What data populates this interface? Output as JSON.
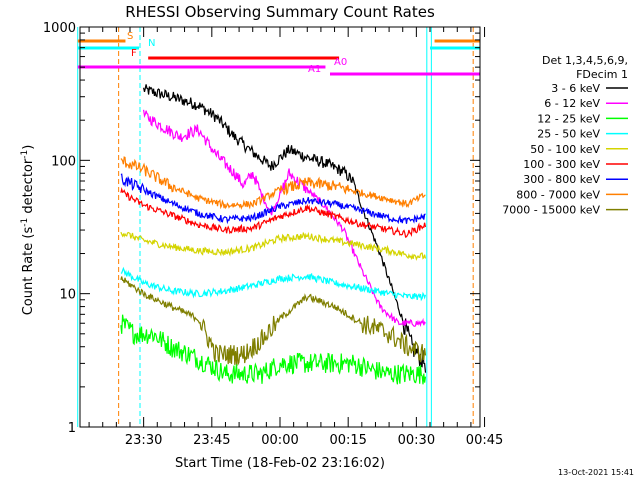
{
  "chart_data": {
    "type": "line",
    "title": "RHESSI Observing Summary Count Rates",
    "xlabel": "Start Time (18-Feb-02 23:16:02)",
    "ylabel_main": "Count Rate (s",
    "ylabel_sup1": "-1",
    "ylabel_mid": " detector",
    "ylabel_sup2": "-1",
    "ylabel_end": ")",
    "y_scale": "log",
    "ylim": [
      1,
      1000
    ],
    "x_range_min": [
      0,
      88
    ],
    "x_tick_values": [
      14,
      29,
      44,
      59,
      74,
      89
    ],
    "x_tick_labels": [
      "23:30",
      "23:45",
      "00:00",
      "00:15",
      "00:30",
      "00:45"
    ],
    "y_tick_values": [
      1,
      10,
      100,
      1000
    ],
    "y_tick_labels": [
      "1",
      "10",
      "100",
      "1000"
    ],
    "legend_header": [
      "Det 1,3,4,5,6,9,",
      "FDecim 1"
    ],
    "timestamp": "13-Oct-2021 15:41",
    "data_window_min": [
      13,
      76
    ],
    "series": [
      {
        "name": "3 - 6 keV",
        "color": "#000000",
        "knots": [
          [
            14,
            340
          ],
          [
            20,
            300
          ],
          [
            26,
            260
          ],
          [
            30,
            210
          ],
          [
            34,
            150
          ],
          [
            38,
            115
          ],
          [
            42,
            90
          ],
          [
            46,
            120
          ],
          [
            50,
            105
          ],
          [
            54,
            95
          ],
          [
            58,
            82
          ],
          [
            60,
            70
          ],
          [
            62,
            45
          ],
          [
            66,
            20
          ],
          [
            70,
            8
          ],
          [
            73,
            4
          ],
          [
            76,
            3
          ]
        ]
      },
      {
        "name": "6 - 12 keV",
        "color": "#ff00ff",
        "knots": [
          [
            14,
            220
          ],
          [
            18,
            180
          ],
          [
            22,
            150
          ],
          [
            26,
            170
          ],
          [
            30,
            110
          ],
          [
            34,
            80
          ],
          [
            36,
            65
          ],
          [
            38,
            80
          ],
          [
            40,
            55
          ],
          [
            42,
            40
          ],
          [
            44,
            55
          ],
          [
            46,
            80
          ],
          [
            50,
            60
          ],
          [
            54,
            45
          ],
          [
            58,
            30
          ],
          [
            62,
            15
          ],
          [
            66,
            8
          ],
          [
            70,
            6
          ],
          [
            73,
            6
          ],
          [
            76,
            6
          ]
        ]
      },
      {
        "name": "12 - 25 keV",
        "color": "#00ff00",
        "knots": [
          [
            9,
            6
          ],
          [
            12,
            5
          ],
          [
            16,
            5
          ],
          [
            20,
            4
          ],
          [
            24,
            3.5
          ],
          [
            28,
            3
          ],
          [
            32,
            2.5
          ],
          [
            36,
            2.5
          ],
          [
            40,
            2.5
          ],
          [
            44,
            3
          ],
          [
            48,
            3
          ],
          [
            52,
            3
          ],
          [
            56,
            3
          ],
          [
            60,
            3
          ],
          [
            64,
            2.7
          ],
          [
            68,
            2.5
          ],
          [
            72,
            2.5
          ],
          [
            76,
            2.5
          ]
        ]
      },
      {
        "name": "25 - 50 keV",
        "color": "#00ffff",
        "knots": [
          [
            9,
            15
          ],
          [
            14,
            12
          ],
          [
            20,
            10.5
          ],
          [
            26,
            10
          ],
          [
            32,
            10.5
          ],
          [
            38,
            11.5
          ],
          [
            44,
            13
          ],
          [
            50,
            13.5
          ],
          [
            56,
            12
          ],
          [
            62,
            11
          ],
          [
            68,
            10
          ],
          [
            72,
            9.5
          ],
          [
            76,
            9.5
          ]
        ]
      },
      {
        "name": "50 - 100 keV",
        "color": "#d4d400",
        "knots": [
          [
            9,
            29
          ],
          [
            14,
            25
          ],
          [
            20,
            22.5
          ],
          [
            26,
            21
          ],
          [
            32,
            20.5
          ],
          [
            38,
            22
          ],
          [
            44,
            26
          ],
          [
            50,
            27
          ],
          [
            56,
            25
          ],
          [
            62,
            23
          ],
          [
            68,
            21
          ],
          [
            72,
            19.5
          ],
          [
            76,
            19
          ]
        ]
      },
      {
        "name": "100 - 300 keV",
        "color": "#ff0000",
        "knots": [
          [
            9,
            58
          ],
          [
            14,
            46
          ],
          [
            20,
            39
          ],
          [
            26,
            33
          ],
          [
            32,
            30
          ],
          [
            38,
            31
          ],
          [
            44,
            38
          ],
          [
            50,
            44
          ],
          [
            56,
            38
          ],
          [
            62,
            33
          ],
          [
            68,
            30
          ],
          [
            72,
            28
          ],
          [
            76,
            33
          ]
        ]
      },
      {
        "name": "300 - 800 keV",
        "color": "#0000ff",
        "knots": [
          [
            9,
            73
          ],
          [
            14,
            60
          ],
          [
            20,
            48
          ],
          [
            26,
            40
          ],
          [
            32,
            36
          ],
          [
            38,
            37
          ],
          [
            44,
            45
          ],
          [
            50,
            50
          ],
          [
            56,
            47
          ],
          [
            62,
            42
          ],
          [
            68,
            37
          ],
          [
            72,
            35
          ],
          [
            76,
            38
          ]
        ]
      },
      {
        "name": "800 - 7000 keV",
        "color": "#ff7f00",
        "knots": [
          [
            9,
            100
          ],
          [
            14,
            85
          ],
          [
            20,
            64
          ],
          [
            26,
            52
          ],
          [
            32,
            46
          ],
          [
            38,
            47
          ],
          [
            44,
            60
          ],
          [
            50,
            68
          ],
          [
            56,
            64
          ],
          [
            62,
            57
          ],
          [
            68,
            51
          ],
          [
            72,
            47
          ],
          [
            76,
            55
          ]
        ]
      },
      {
        "name": "7000 - 15000 keV",
        "color": "#7f7f00",
        "knots": [
          [
            9,
            13
          ],
          [
            14,
            10
          ],
          [
            20,
            8
          ],
          [
            26,
            6.5
          ],
          [
            30,
            3.5
          ],
          [
            36,
            3.5
          ],
          [
            40,
            4.5
          ],
          [
            44,
            6.5
          ],
          [
            50,
            9.5
          ],
          [
            56,
            8
          ],
          [
            62,
            6
          ],
          [
            68,
            5
          ],
          [
            72,
            4
          ],
          [
            76,
            3.5
          ]
        ]
      }
    ],
    "flags": [
      {
        "name": "S",
        "color": "#ff7f00",
        "segments": [
          [
            -0.5,
            10
          ]
        ]
      },
      {
        "name": "N",
        "color": "#00ffff",
        "segments": [
          [
            -0.5,
            13
          ]
        ]
      },
      {
        "name": "F",
        "color": "#ff0000",
        "segments": [
          [
            15,
            57
          ]
        ]
      },
      {
        "name": "A0",
        "color": "#ff00ff",
        "segments": [
          [
            -0.5,
            54
          ]
        ]
      },
      {
        "name": "A1",
        "color": "#ff00ff",
        "segments": [
          [
            55,
            88
          ]
        ]
      }
    ],
    "flags_right": [
      {
        "name": "S",
        "color": "#ff7f00",
        "segments": [
          [
            78,
            88
          ]
        ]
      },
      {
        "name": "N",
        "color": "#00ffff",
        "segments": [
          [
            77,
            88
          ]
        ]
      }
    ],
    "vlines": [
      {
        "x": 8.5,
        "color": "#ff7f00",
        "style": "dash"
      },
      {
        "x": 13.2,
        "color": "#00ffff",
        "style": "dash"
      },
      {
        "x": 76.3,
        "color": "#00ffff",
        "style": "solid"
      },
      {
        "x": 77.3,
        "color": "#00ffff",
        "style": "solid"
      },
      {
        "x": 86.5,
        "color": "#ff7f00",
        "style": "dash"
      },
      {
        "x": -0.5,
        "color": "#00ffff",
        "style": "solid"
      },
      {
        "x": 88.0,
        "color": "#00ffff",
        "style": "solid"
      }
    ]
  }
}
